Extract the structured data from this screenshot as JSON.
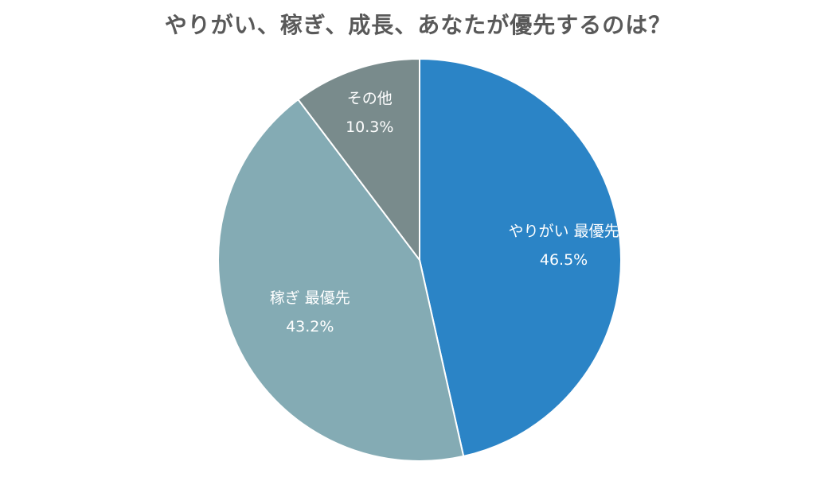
{
  "chart_data": {
    "type": "pie",
    "title": "やりがい、稼ぎ、成長、あなたが優先するのは？",
    "slices": [
      {
        "label": "やりがい 最優先",
        "value": 46.5,
        "value_text": "46.5%",
        "color": "#2B84C6"
      },
      {
        "label": "稼ぎ 最優先",
        "value": 43.2,
        "value_text": "43.2%",
        "color": "#84ABB4"
      },
      {
        "label": "その他",
        "value": 10.3,
        "value_text": "10.3%",
        "color": "#798B8C"
      }
    ],
    "start_angle": "12 o'clock",
    "direction": "clockwise",
    "legend": "none"
  }
}
